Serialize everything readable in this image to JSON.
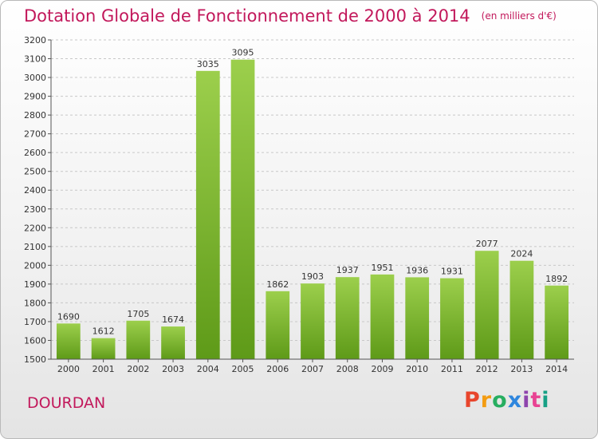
{
  "header": {
    "title": "Dotation Globale de Fonctionnement de 2000 à 2014",
    "unit": "(en milliers d'€)"
  },
  "commune": "DOURDAN",
  "logo": {
    "text": "Proxiti",
    "colors": [
      "#e8452c",
      "#f39c12",
      "#27ae60",
      "#2e86de",
      "#8e44ad",
      "#e84393",
      "#16a085"
    ]
  },
  "chart_data": {
    "type": "bar",
    "categories": [
      "2000",
      "2001",
      "2002",
      "2003",
      "2004",
      "2005",
      "2006",
      "2007",
      "2008",
      "2009",
      "2010",
      "2011",
      "2012",
      "2013",
      "2014"
    ],
    "values": [
      1690,
      1612,
      1705,
      1674,
      3035,
      3095,
      1862,
      1903,
      1937,
      1951,
      1936,
      1931,
      2077,
      2024,
      1892
    ],
    "ylim": [
      1500,
      3200
    ],
    "ytick_step": 100,
    "grid": "dashed horizontal",
    "bar_color_top": "#9ccf4c",
    "bar_color_bottom": "#5e9a18",
    "data_labels": true
  }
}
